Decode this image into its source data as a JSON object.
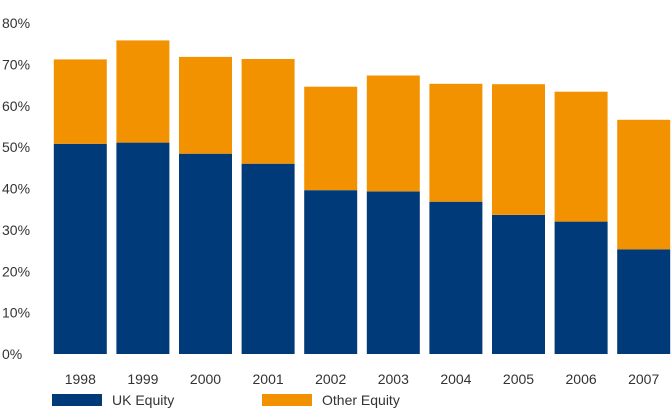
{
  "chart_data": {
    "type": "bar",
    "stacked": true,
    "categories": [
      "1998",
      "1999",
      "2000",
      "2001",
      "2002",
      "2003",
      "2004",
      "2005",
      "2006",
      "2007"
    ],
    "series": [
      {
        "name": "UK Equity",
        "color": "#003a78",
        "values": [
          50.8,
          51.1,
          48.4,
          46.0,
          39.6,
          39.3,
          36.8,
          33.6,
          32.0,
          25.3
        ]
      },
      {
        "name": "Other Equity",
        "color": "#f39200",
        "values": [
          20.4,
          24.7,
          23.4,
          25.3,
          25.0,
          28.0,
          28.5,
          31.6,
          31.4,
          31.3
        ]
      }
    ],
    "ylim": [
      0,
      80
    ],
    "yticks": [
      "0%",
      "10%",
      "20%",
      "30%",
      "40%",
      "50%",
      "60%",
      "70%",
      "80%"
    ],
    "ytick_values": [
      0,
      10,
      20,
      30,
      40,
      50,
      60,
      70,
      80
    ],
    "grid": false,
    "legend_position": "bottom-left"
  }
}
